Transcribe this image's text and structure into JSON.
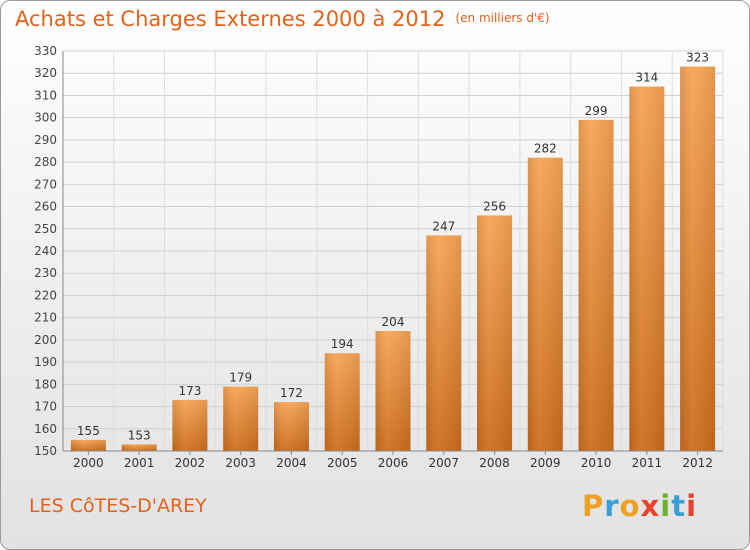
{
  "chart_data": {
    "type": "bar",
    "title": "Achats et Charges Externes 2000 à 2012",
    "subtitle": "(en milliers d'€)",
    "categories": [
      "2000",
      "2001",
      "2002",
      "2003",
      "2004",
      "2005",
      "2006",
      "2007",
      "2008",
      "2009",
      "2010",
      "2011",
      "2012"
    ],
    "values": [
      155,
      153,
      173,
      179,
      172,
      194,
      204,
      247,
      256,
      282,
      299,
      314,
      323
    ],
    "ylim": [
      150,
      330
    ],
    "yticks": [
      150,
      160,
      170,
      180,
      190,
      200,
      210,
      220,
      230,
      240,
      250,
      260,
      270,
      280,
      290,
      300,
      310,
      320,
      330
    ],
    "grid": true,
    "bar_color": "#e8832a"
  },
  "footer": {
    "place": "LES CôTES-D'AREY",
    "logo_letters": [
      "P",
      "r",
      "o",
      "x",
      "i",
      "t",
      "i"
    ]
  }
}
